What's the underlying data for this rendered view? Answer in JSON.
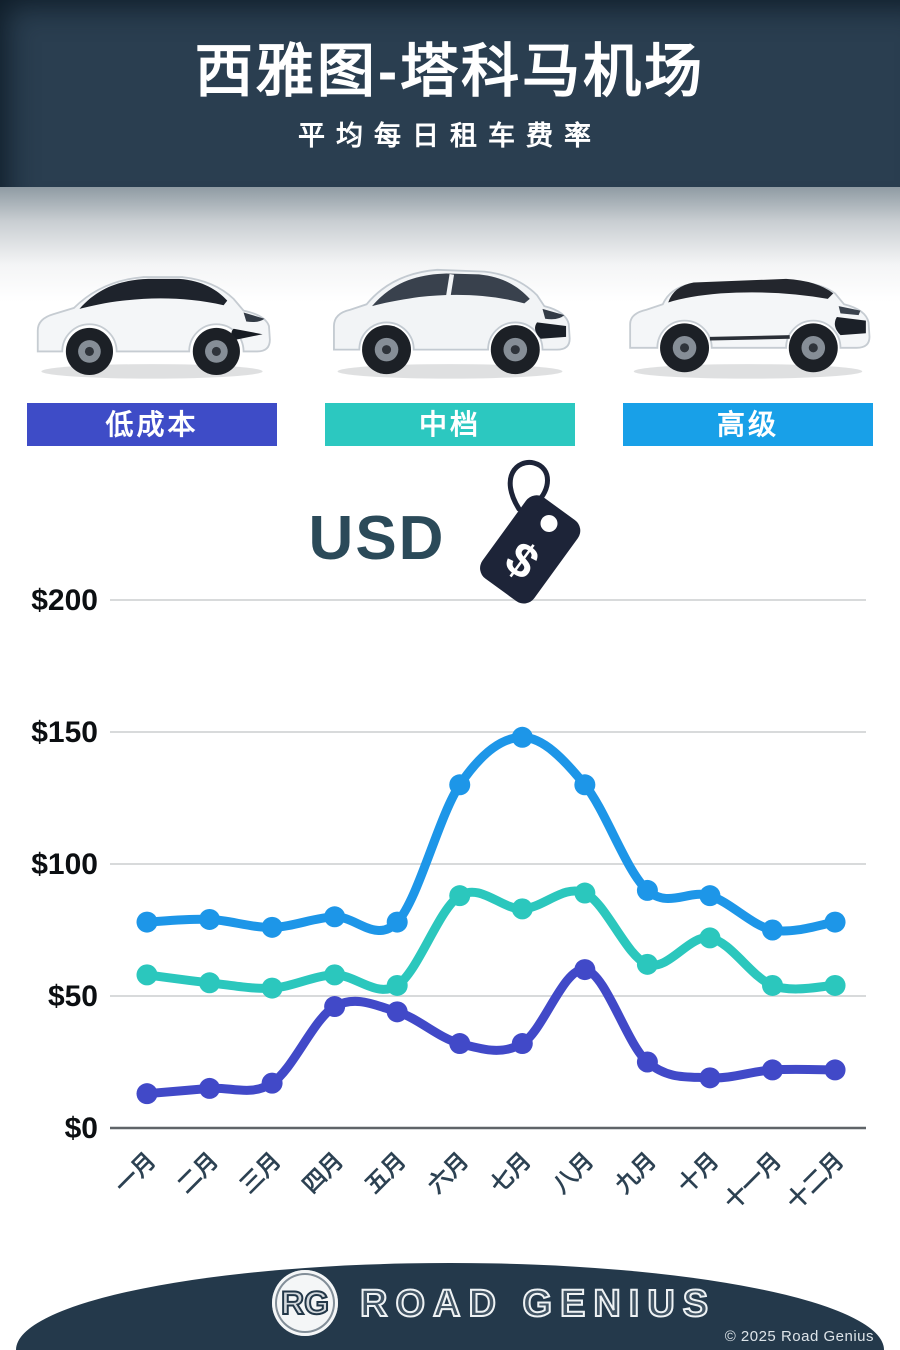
{
  "header": {
    "title": "西雅图-塔科马机场",
    "subtitle": "平均每日租车费率"
  },
  "categories": [
    {
      "key": "economy",
      "label": "低成本",
      "color": "#3e4cc7"
    },
    {
      "key": "midsize",
      "label": "中档",
      "color": "#2cc8c0"
    },
    {
      "key": "premium",
      "label": "高级",
      "color": "#18a0e8"
    }
  ],
  "currency": {
    "label": "USD",
    "icon": "price-tag-dollar",
    "tag_color": "#1d2438"
  },
  "chart_data": {
    "type": "line",
    "x": [
      "一月",
      "二月",
      "三月",
      "四月",
      "五月",
      "六月",
      "七月",
      "八月",
      "九月",
      "十月",
      "十一月",
      "十二月"
    ],
    "series": [
      {
        "key": "premium",
        "name": "高级",
        "color": "#1d96e8",
        "values": [
          78,
          79,
          76,
          80,
          78,
          130,
          148,
          130,
          90,
          88,
          75,
          78
        ]
      },
      {
        "key": "midsize",
        "name": "中档",
        "color": "#2bc7bd",
        "values": [
          58,
          55,
          53,
          58,
          54,
          88,
          83,
          89,
          62,
          72,
          54,
          54
        ]
      },
      {
        "key": "economy",
        "name": "低成本",
        "color": "#4149c8",
        "values": [
          13,
          15,
          17,
          46,
          44,
          32,
          32,
          60,
          25,
          19,
          22,
          22
        ]
      }
    ],
    "yticks": [
      {
        "value": 0,
        "label": "$0"
      },
      {
        "value": 50,
        "label": "$50"
      },
      {
        "value": 100,
        "label": "$100"
      },
      {
        "value": 150,
        "label": "$150"
      },
      {
        "value": 200,
        "label": "$200"
      }
    ],
    "ylim": [
      0,
      200
    ],
    "grid": true,
    "legend_position": "category-pills-above-chart"
  },
  "footer": {
    "logo_initials": "RG",
    "brand": "ROAD GENIUS",
    "copyright": "© 2025 Road Genius"
  }
}
